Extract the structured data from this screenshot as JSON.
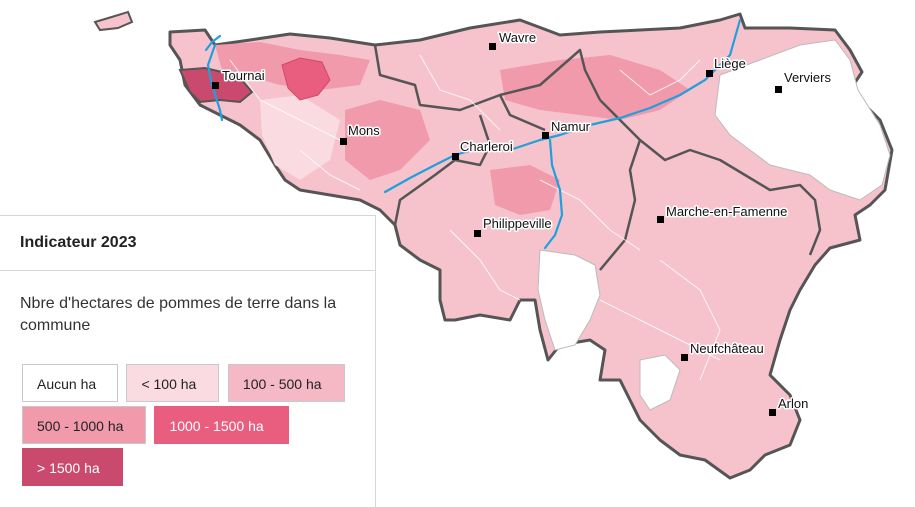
{
  "map": {
    "cities": [
      {
        "name": "Wavre"
      },
      {
        "name": "Tournai"
      },
      {
        "name": "Liège"
      },
      {
        "name": "Verviers"
      },
      {
        "name": "Mons"
      },
      {
        "name": "Namur"
      },
      {
        "name": "Charleroi"
      },
      {
        "name": "Marche-en-Famenne"
      },
      {
        "name": "Philippeville"
      },
      {
        "name": "Neufchâteau"
      },
      {
        "name": "Arlon"
      }
    ]
  },
  "legend": {
    "title": "Indicateur 2023",
    "subtitle": "Nbre d'hectares de pommes de terre dans la commune",
    "classes": [
      {
        "label": "Aucun ha",
        "color": "#ffffff"
      },
      {
        "label": "< 100 ha",
        "color": "#fadbe1"
      },
      {
        "label": "100 - 500 ha",
        "color": "#f5b9c5"
      },
      {
        "label": "500 - 1000 ha",
        "color": "#f19aac"
      },
      {
        "label": "1000 - 1500 ha",
        "color": "#e95d7f"
      },
      {
        "label": "> 1500 ha",
        "color": "#c94a6d"
      }
    ]
  }
}
